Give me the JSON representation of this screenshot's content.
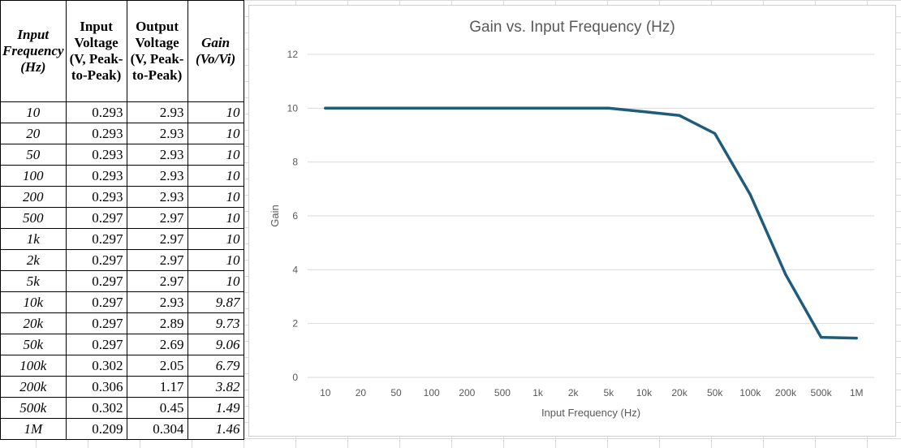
{
  "table": {
    "headers": {
      "freq": "Input Frequency (Hz)",
      "vin": "Input Voltage (V, Peak-to-Peak)",
      "vout": "Output Voltage (V, Peak-to-Peak)",
      "gain": "Gain (Vo/Vi)"
    },
    "rows": [
      {
        "freq": "10",
        "vin": "0.293",
        "vout": "2.93",
        "gain": "10"
      },
      {
        "freq": "20",
        "vin": "0.293",
        "vout": "2.93",
        "gain": "10"
      },
      {
        "freq": "50",
        "vin": "0.293",
        "vout": "2.93",
        "gain": "10"
      },
      {
        "freq": "100",
        "vin": "0.293",
        "vout": "2.93",
        "gain": "10"
      },
      {
        "freq": "200",
        "vin": "0.293",
        "vout": "2.93",
        "gain": "10"
      },
      {
        "freq": "500",
        "vin": "0.297",
        "vout": "2.97",
        "gain": "10"
      },
      {
        "freq": "1k",
        "vin": "0.297",
        "vout": "2.97",
        "gain": "10"
      },
      {
        "freq": "2k",
        "vin": "0.297",
        "vout": "2.97",
        "gain": "10"
      },
      {
        "freq": "5k",
        "vin": "0.297",
        "vout": "2.97",
        "gain": "10"
      },
      {
        "freq": "10k",
        "vin": "0.297",
        "vout": "2.93",
        "gain": "9.87"
      },
      {
        "freq": "20k",
        "vin": "0.297",
        "vout": "2.89",
        "gain": "9.73"
      },
      {
        "freq": "50k",
        "vin": "0.297",
        "vout": "2.69",
        "gain": "9.06"
      },
      {
        "freq": "100k",
        "vin": "0.302",
        "vout": "2.05",
        "gain": "6.79"
      },
      {
        "freq": "200k",
        "vin": "0.306",
        "vout": "1.17",
        "gain": "3.82"
      },
      {
        "freq": "500k",
        "vin": "0.302",
        "vout": "0.45",
        "gain": "1.49"
      },
      {
        "freq": "1M",
        "vin": "0.209",
        "vout": "0.304",
        "gain": "1.46"
      }
    ]
  },
  "chart_data": {
    "type": "line",
    "title": "Gain vs. Input Frequency (Hz)",
    "xlabel": "Input Frequency (Hz)",
    "ylabel": "Gain",
    "categories": [
      "10",
      "20",
      "50",
      "100",
      "200",
      "500",
      "1k",
      "2k",
      "5k",
      "10k",
      "20k",
      "50k",
      "100k",
      "200k",
      "500k",
      "1M"
    ],
    "series": [
      {
        "values": [
          10,
          10,
          10,
          10,
          10,
          10,
          10,
          10,
          10,
          9.87,
          9.73,
          9.06,
          6.79,
          3.82,
          1.49,
          1.46
        ]
      }
    ],
    "ylim": [
      0,
      12
    ],
    "yticks": [
      0,
      2,
      4,
      6,
      8,
      10,
      12
    ],
    "grid": true,
    "legend": "none",
    "line_color": "#1F5C7A"
  }
}
